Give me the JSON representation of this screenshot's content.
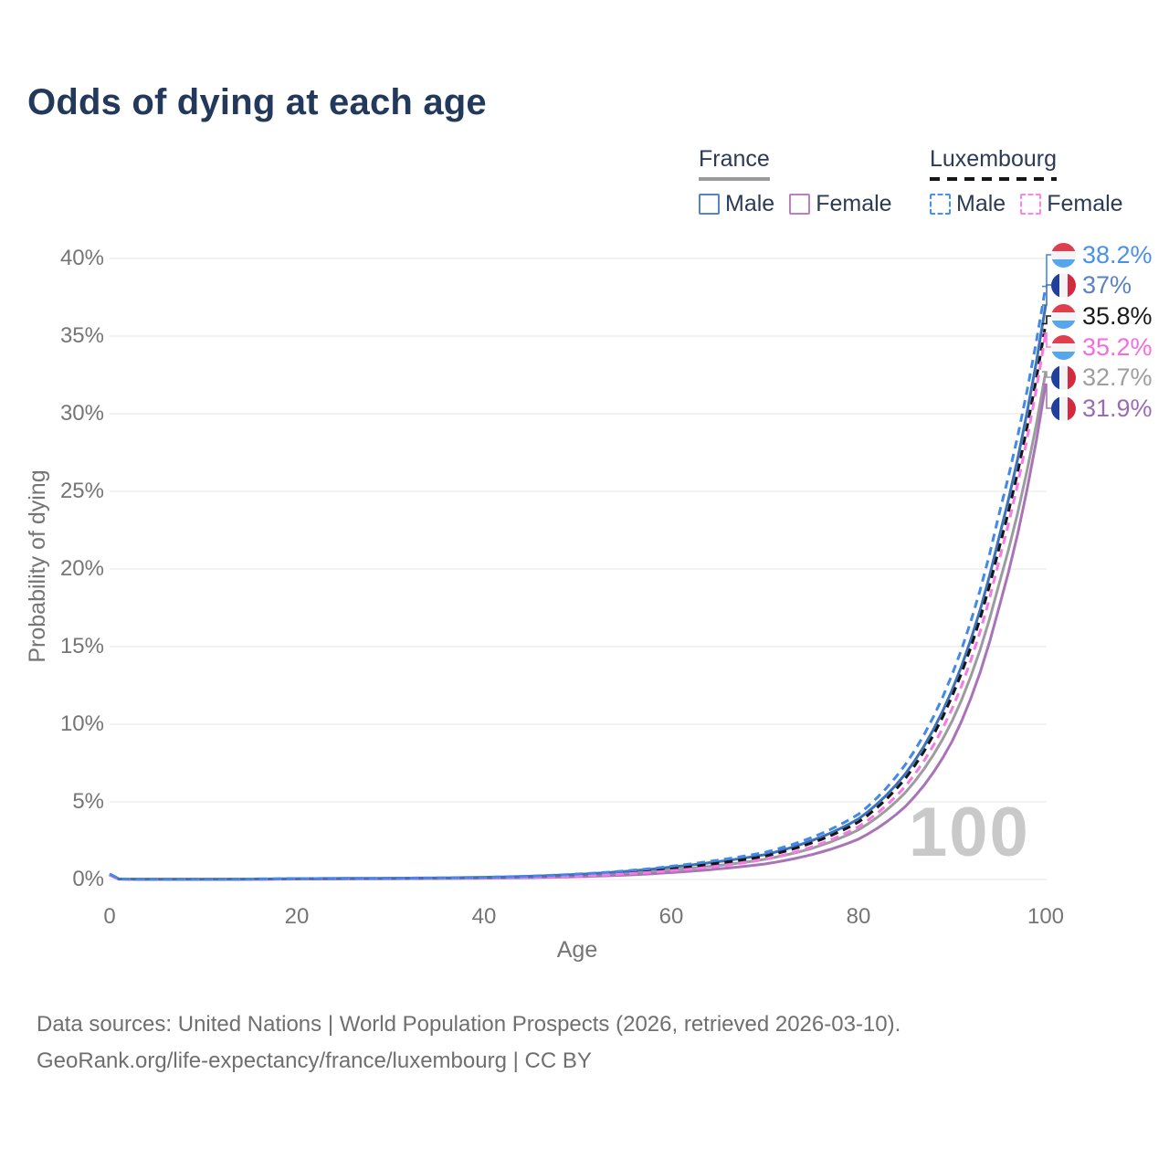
{
  "title": "Odds of dying at each age",
  "legend": {
    "groups": [
      {
        "name": "France",
        "underline_style": "solid",
        "underline_color": "#9a9a9a",
        "items": [
          {
            "label": "Male",
            "box_color": "#5585c5",
            "dashed": false
          },
          {
            "label": "Female",
            "box_color": "#bd7fc0",
            "dashed": false
          }
        ]
      },
      {
        "name": "Luxembourg",
        "underline_style": "dashed",
        "underline_color": "#161616",
        "items": [
          {
            "label": "Male",
            "box_color": "#4a90f0",
            "dashed": true
          },
          {
            "label": "Female",
            "box_color": "#fb85e8",
            "dashed": true
          }
        ]
      }
    ]
  },
  "chart_data": {
    "type": "line",
    "title": "Odds of dying at each age",
    "xlabel": "Age",
    "ylabel": "Probability of dying",
    "xlim": [
      0,
      100
    ],
    "ylim": [
      0,
      40
    ],
    "grid": true,
    "legend_position": "top-right",
    "age_cursor": "100",
    "xticks": [
      {
        "label": "0",
        "value": 0
      },
      {
        "label": "20",
        "value": 20
      },
      {
        "label": "40",
        "value": 40
      },
      {
        "label": "60",
        "value": 60
      },
      {
        "label": "80",
        "value": 80
      },
      {
        "label": "100",
        "value": 100
      }
    ],
    "yticks": [
      {
        "label": "0%",
        "value": 0
      },
      {
        "label": "5%",
        "value": 5
      },
      {
        "label": "10%",
        "value": 10
      },
      {
        "label": "15%",
        "value": 15
      },
      {
        "label": "20%",
        "value": 20
      },
      {
        "label": "25%",
        "value": 25
      },
      {
        "label": "30%",
        "value": 30
      },
      {
        "label": "35%",
        "value": 35
      },
      {
        "label": "40%",
        "value": 40
      }
    ],
    "sample_ages": [
      0,
      1,
      5,
      10,
      15,
      20,
      25,
      30,
      35,
      40,
      45,
      50,
      55,
      60,
      65,
      70,
      75,
      80,
      85,
      90,
      95,
      100
    ],
    "series": [
      {
        "name": "France Total",
        "country": "France",
        "group": "total",
        "color": "#9c9ca0",
        "dashed": false,
        "flag": "france",
        "end_value": 32.7,
        "end_label": "32.7%",
        "label_color": "#9e9e9e",
        "values": [
          0.3,
          0.03,
          0.01,
          0.01,
          0.02,
          0.04,
          0.05,
          0.06,
          0.08,
          0.11,
          0.16,
          0.25,
          0.4,
          0.62,
          0.9,
          1.3,
          2.0,
          3.2,
          5.6,
          10.2,
          19.0,
          32.7
        ]
      },
      {
        "name": "France Female",
        "country": "France",
        "group": "female",
        "color": "#a973b8",
        "dashed": false,
        "flag": "france",
        "end_value": 31.9,
        "end_label": "31.9%",
        "label_color": "#9a6cb3",
        "values": [
          0.28,
          0.025,
          0.009,
          0.009,
          0.015,
          0.028,
          0.035,
          0.045,
          0.06,
          0.08,
          0.12,
          0.18,
          0.28,
          0.45,
          0.68,
          1.0,
          1.6,
          2.6,
          4.7,
          8.9,
          17.5,
          31.9
        ]
      },
      {
        "name": "France Male",
        "country": "France",
        "group": "male",
        "color": "#3e72b8",
        "dashed": false,
        "flag": "france",
        "end_value": 37.0,
        "end_label": "37%",
        "label_color": "#5b82c0",
        "values": [
          0.35,
          0.035,
          0.012,
          0.012,
          0.03,
          0.055,
          0.07,
          0.08,
          0.1,
          0.14,
          0.21,
          0.33,
          0.52,
          0.8,
          1.15,
          1.6,
          2.5,
          3.9,
          6.8,
          12.2,
          22.0,
          37.0
        ]
      },
      {
        "name": "Luxembourg Total",
        "country": "Luxembourg",
        "group": "total",
        "color": "#161616",
        "dashed": true,
        "flag": "luxembourg",
        "end_value": 35.8,
        "end_label": "35.8%",
        "label_color": "#1a1a1a",
        "values": [
          0.3,
          0.03,
          0.01,
          0.01,
          0.022,
          0.045,
          0.055,
          0.065,
          0.085,
          0.12,
          0.18,
          0.28,
          0.45,
          0.7,
          1.05,
          1.5,
          2.35,
          3.7,
          6.5,
          11.8,
          21.3,
          35.8
        ]
      },
      {
        "name": "Luxembourg Female",
        "country": "Luxembourg",
        "group": "female",
        "color": "#f878e4",
        "dashed": true,
        "flag": "luxembourg",
        "end_value": 35.2,
        "end_label": "35.2%",
        "label_color": "#f56ce0",
        "values": [
          0.28,
          0.025,
          0.009,
          0.009,
          0.018,
          0.035,
          0.045,
          0.055,
          0.07,
          0.1,
          0.15,
          0.22,
          0.36,
          0.57,
          0.85,
          1.3,
          2.1,
          3.4,
          6.0,
          11.0,
          20.5,
          35.2
        ]
      },
      {
        "name": "Luxembourg Male",
        "country": "Luxembourg",
        "group": "male",
        "color": "#4289ea",
        "dashed": true,
        "flag": "luxembourg",
        "end_value": 38.2,
        "end_label": "38.2%",
        "label_color": "#4a90ea",
        "values": [
          0.35,
          0.04,
          0.012,
          0.012,
          0.03,
          0.055,
          0.07,
          0.08,
          0.1,
          0.14,
          0.22,
          0.35,
          0.55,
          0.85,
          1.25,
          1.75,
          2.7,
          4.2,
          7.4,
          13.2,
          23.5,
          38.2
        ]
      }
    ],
    "flag_colors": {
      "luxembourg": [
        "#e03d4d",
        "#f4f4f6",
        "#55a6ec"
      ],
      "france": [
        "#21409c",
        "#f4f4f6",
        "#d42a3d"
      ]
    }
  },
  "watermark": "100",
  "footer": {
    "line1": "Data sources: United Nations | World Population Prospects (2026, retrieved 2026-03-10).",
    "line2": "GeoRank.org/life-expectancy/france/luxembourg | CC BY"
  }
}
